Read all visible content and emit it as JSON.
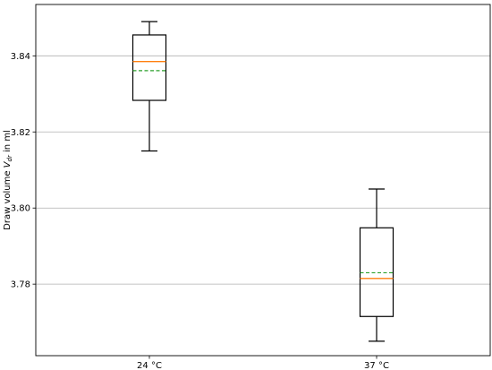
{
  "chart_data": {
    "type": "box",
    "categories": [
      "24 °C",
      "37 °C"
    ],
    "boxes": [
      {
        "category": "24 °C",
        "whisker_low": 3.815,
        "q1": 3.8283,
        "median": 3.8385,
        "mean": 3.8361,
        "q3": 3.8455,
        "whisker_high": 3.849
      },
      {
        "category": "37 °C",
        "whisker_low": 3.765,
        "q1": 3.7715,
        "median": 3.7815,
        "mean": 3.783,
        "q3": 3.7948,
        "whisker_high": 3.805
      }
    ],
    "ylabel": {
      "prefix": "Draw volume ",
      "symbol": "V",
      "subscript": "dr",
      "suffix": " in ml"
    },
    "xlabel": "",
    "y_ticks": [
      "3.78",
      "3.80",
      "3.82",
      "3.84"
    ],
    "y_tick_values": [
      3.78,
      3.8,
      3.82,
      3.84
    ],
    "ylim": [
      3.7612,
      3.8535
    ],
    "grid": "y",
    "colors": {
      "box": "#000000",
      "median": "#ff7f0e",
      "mean": "#2ca02c",
      "grid": "#b0b0b0"
    }
  }
}
